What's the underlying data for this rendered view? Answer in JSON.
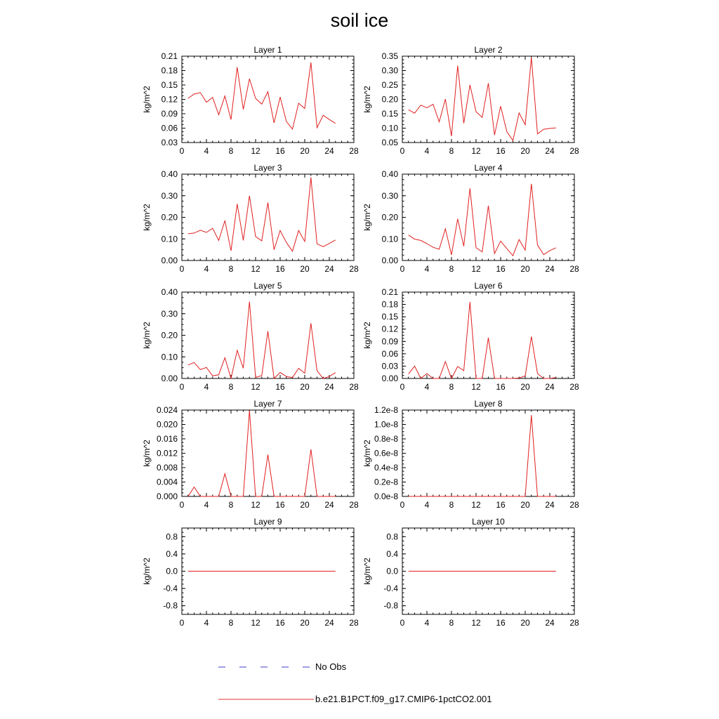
{
  "title": "soil ice",
  "legend": [
    {
      "label": "No Obs",
      "color": "#3c3ccc",
      "dash": "10 20"
    },
    {
      "label": "b.e21.B1PCT.f09_g17.CMIP6-1pctCO2.001",
      "color": "#e03030",
      "dash": ""
    }
  ],
  "chart_data": [
    {
      "type": "line",
      "title": "Layer 1",
      "ylabel": "kg/m^2",
      "xlim": [
        0,
        28
      ],
      "xticks": [
        "0",
        "4",
        "8",
        "12",
        "16",
        "20",
        "24",
        "28"
      ],
      "ylim": [
        0.03,
        0.21
      ],
      "yticks": [
        "0.03",
        "0.06",
        "0.09",
        "0.12",
        "0.15",
        "0.18",
        "0.21"
      ],
      "series": [
        {
          "x": [
            1,
            2,
            3,
            4,
            5,
            6,
            7,
            8,
            9,
            10,
            11,
            12,
            13,
            14,
            15,
            16,
            17,
            18,
            19,
            20,
            21,
            22,
            23,
            24,
            25
          ],
          "values": [
            0.122,
            0.131,
            0.134,
            0.114,
            0.124,
            0.088,
            0.127,
            0.078,
            0.187,
            0.099,
            0.163,
            0.122,
            0.11,
            0.136,
            0.071,
            0.125,
            0.074,
            0.058,
            0.112,
            0.101,
            0.197,
            0.061,
            0.087,
            0.078,
            0.07
          ]
        }
      ]
    },
    {
      "type": "line",
      "title": "Layer 2",
      "ylabel": "kg/m^2",
      "xlim": [
        0,
        28
      ],
      "xticks": [
        "0",
        "4",
        "8",
        "12",
        "16",
        "20",
        "24",
        "28"
      ],
      "ylim": [
        0.05,
        0.35
      ],
      "yticks": [
        "0.05",
        "0.10",
        "0.15",
        "0.20",
        "0.25",
        "0.30",
        "0.35"
      ],
      "series": [
        {
          "x": [
            1,
            2,
            3,
            4,
            5,
            6,
            7,
            8,
            9,
            10,
            11,
            12,
            13,
            14,
            15,
            16,
            17,
            18,
            19,
            20,
            21,
            22,
            23,
            24,
            25
          ],
          "values": [
            0.164,
            0.152,
            0.18,
            0.171,
            0.183,
            0.122,
            0.201,
            0.072,
            0.317,
            0.117,
            0.25,
            0.157,
            0.137,
            0.256,
            0.076,
            0.176,
            0.088,
            0.057,
            0.153,
            0.112,
            0.346,
            0.08,
            0.096,
            0.099,
            0.101
          ]
        }
      ]
    },
    {
      "type": "line",
      "title": "Layer 3",
      "ylabel": "kg/m^2",
      "xlim": [
        0,
        28
      ],
      "xticks": [
        "0",
        "4",
        "8",
        "12",
        "16",
        "20",
        "24",
        "28"
      ],
      "ylim": [
        0.0,
        0.4
      ],
      "yticks": [
        "0.00",
        "0.10",
        "0.20",
        "0.30",
        "0.40"
      ],
      "series": [
        {
          "x": [
            1,
            2,
            3,
            4,
            5,
            6,
            7,
            8,
            9,
            10,
            11,
            12,
            13,
            14,
            15,
            16,
            17,
            18,
            19,
            20,
            21,
            22,
            23,
            24,
            25
          ],
          "values": [
            0.124,
            0.127,
            0.14,
            0.13,
            0.149,
            0.093,
            0.185,
            0.045,
            0.262,
            0.093,
            0.3,
            0.111,
            0.091,
            0.268,
            0.05,
            0.139,
            0.084,
            0.043,
            0.139,
            0.088,
            0.385,
            0.077,
            0.064,
            0.079,
            0.095
          ]
        }
      ]
    },
    {
      "type": "line",
      "title": "Layer 4",
      "ylabel": "kg/m^2",
      "xlim": [
        0,
        28
      ],
      "xticks": [
        "0",
        "4",
        "8",
        "12",
        "16",
        "20",
        "24",
        "28"
      ],
      "ylim": [
        0.0,
        0.4
      ],
      "yticks": [
        "0.00",
        "0.10",
        "0.20",
        "0.30",
        "0.40"
      ],
      "series": [
        {
          "x": [
            1,
            2,
            3,
            4,
            5,
            6,
            7,
            8,
            9,
            10,
            11,
            12,
            13,
            14,
            15,
            16,
            17,
            18,
            19,
            20,
            21,
            22,
            23,
            24,
            25
          ],
          "values": [
            0.118,
            0.099,
            0.093,
            0.078,
            0.061,
            0.052,
            0.147,
            0.026,
            0.193,
            0.066,
            0.334,
            0.059,
            0.04,
            0.254,
            0.032,
            0.09,
            0.055,
            0.022,
            0.097,
            0.048,
            0.355,
            0.072,
            0.027,
            0.046,
            0.059
          ]
        }
      ]
    },
    {
      "type": "line",
      "title": "Layer 5",
      "ylabel": "kg/m^2",
      "xlim": [
        0,
        28
      ],
      "xticks": [
        "0",
        "4",
        "8",
        "12",
        "16",
        "20",
        "24",
        "28"
      ],
      "ylim": [
        0.0,
        0.4
      ],
      "yticks": [
        "0.00",
        "0.10",
        "0.20",
        "0.30",
        "0.40"
      ],
      "series": [
        {
          "x": [
            1,
            2,
            3,
            4,
            5,
            6,
            7,
            8,
            9,
            10,
            11,
            12,
            13,
            14,
            15,
            16,
            17,
            18,
            19,
            20,
            21,
            22,
            23,
            24,
            25
          ],
          "values": [
            0.062,
            0.074,
            0.041,
            0.051,
            0.012,
            0.017,
            0.096,
            0.0,
            0.13,
            0.047,
            0.356,
            0.005,
            0.013,
            0.219,
            0.0,
            0.028,
            0.009,
            0.004,
            0.047,
            0.024,
            0.256,
            0.036,
            0.0,
            0.009,
            0.027
          ]
        }
      ]
    },
    {
      "type": "line",
      "title": "Layer 6",
      "ylabel": "kg/m^2",
      "xlim": [
        0,
        28
      ],
      "xticks": [
        "0",
        "4",
        "8",
        "12",
        "16",
        "20",
        "24",
        "28"
      ],
      "ylim": [
        0.0,
        0.21
      ],
      "yticks": [
        "0.00",
        "0.03",
        "0.06",
        "0.09",
        "0.12",
        "0.15",
        "0.18",
        "0.21"
      ],
      "series": [
        {
          "x": [
            1,
            2,
            3,
            4,
            5,
            6,
            7,
            8,
            9,
            10,
            11,
            12,
            13,
            14,
            15,
            16,
            17,
            18,
            19,
            20,
            21,
            22,
            23,
            24,
            25
          ],
          "values": [
            0.011,
            0.03,
            0.0,
            0.012,
            0.0,
            0.0,
            0.041,
            0.0,
            0.029,
            0.019,
            0.186,
            0.0,
            0.0,
            0.099,
            0.0,
            0.0,
            0.0,
            0.0,
            0.001,
            0.006,
            0.102,
            0.012,
            0.0,
            0.0,
            0.002
          ]
        }
      ]
    },
    {
      "type": "line",
      "title": "Layer 7",
      "ylabel": "kg/m^2",
      "xlim": [
        0,
        28
      ],
      "xticks": [
        "0",
        "4",
        "8",
        "12",
        "16",
        "20",
        "24",
        "28"
      ],
      "ylim": [
        0.0,
        0.024
      ],
      "yticks": [
        "0.000",
        "0.004",
        "0.008",
        "0.012",
        "0.016",
        "0.020",
        "0.024"
      ],
      "series": [
        {
          "x": [
            1,
            2,
            3,
            4,
            5,
            6,
            7,
            8,
            9,
            10,
            11,
            12,
            13,
            14,
            15,
            16,
            17,
            18,
            19,
            20,
            21,
            22,
            23,
            24,
            25
          ],
          "values": [
            0.0,
            0.0026,
            0.0,
            0.0,
            0.0,
            0.0,
            0.0063,
            0.0,
            0.0,
            0.0,
            0.0239,
            0.0,
            0.0,
            0.0116,
            0.0,
            0.0,
            0.0,
            0.0,
            0.0,
            0.0,
            0.0131,
            0.0,
            0.0,
            0.0,
            0.0
          ]
        }
      ]
    },
    {
      "type": "line",
      "title": "Layer 8",
      "ylabel": "kg/m^2",
      "xlim": [
        0,
        28
      ],
      "xticks": [
        "0",
        "4",
        "8",
        "12",
        "16",
        "20",
        "24",
        "28"
      ],
      "ylim": [
        0.0,
        1.2e-08
      ],
      "yticks": [
        "0.0e-8",
        "0.2e-8",
        "0.4e-8",
        "0.6e-8",
        "0.8e-8",
        "1.0e-8",
        "1.2e-8"
      ],
      "series": [
        {
          "x": [
            1,
            2,
            3,
            4,
            5,
            6,
            7,
            8,
            9,
            10,
            11,
            12,
            13,
            14,
            15,
            16,
            17,
            18,
            19,
            20,
            21,
            22,
            23,
            24,
            25
          ],
          "values": [
            0,
            0,
            0,
            0,
            0,
            0,
            0,
            0,
            0,
            0,
            0,
            0,
            0,
            0,
            0,
            0,
            0,
            0,
            0,
            0,
            1.13e-08,
            0,
            0,
            0,
            0
          ]
        }
      ]
    },
    {
      "type": "line",
      "title": "Layer 9",
      "ylabel": "kg/m^2",
      "xlim": [
        0,
        28
      ],
      "xticks": [
        "0",
        "4",
        "8",
        "12",
        "16",
        "20",
        "24",
        "28"
      ],
      "ylim": [
        -1.0,
        1.0
      ],
      "yticks": [
        "-0.8",
        "-0.4",
        "0.0",
        "0.4",
        "0.8"
      ],
      "series": [
        {
          "x": [
            1,
            2,
            3,
            4,
            5,
            6,
            7,
            8,
            9,
            10,
            11,
            12,
            13,
            14,
            15,
            16,
            17,
            18,
            19,
            20,
            21,
            22,
            23,
            24,
            25
          ],
          "values": [
            0,
            0,
            0,
            0,
            0,
            0,
            0,
            0,
            0,
            0,
            0,
            0,
            0,
            0,
            0,
            0,
            0,
            0,
            0,
            0,
            0,
            0,
            0,
            0,
            0
          ]
        }
      ]
    },
    {
      "type": "line",
      "title": "Layer 10",
      "ylabel": "kg/m^2",
      "xlim": [
        0,
        28
      ],
      "xticks": [
        "0",
        "4",
        "8",
        "12",
        "16",
        "20",
        "24",
        "28"
      ],
      "ylim": [
        -1.0,
        1.0
      ],
      "yticks": [
        "-0.8",
        "-0.4",
        "0.0",
        "0.4",
        "0.8"
      ],
      "series": [
        {
          "x": [
            1,
            2,
            3,
            4,
            5,
            6,
            7,
            8,
            9,
            10,
            11,
            12,
            13,
            14,
            15,
            16,
            17,
            18,
            19,
            20,
            21,
            22,
            23,
            24,
            25
          ],
          "values": [
            0,
            0,
            0,
            0,
            0,
            0,
            0,
            0,
            0,
            0,
            0,
            0,
            0,
            0,
            0,
            0,
            0,
            0,
            0,
            0,
            0,
            0,
            0,
            0,
            0
          ]
        }
      ]
    }
  ]
}
